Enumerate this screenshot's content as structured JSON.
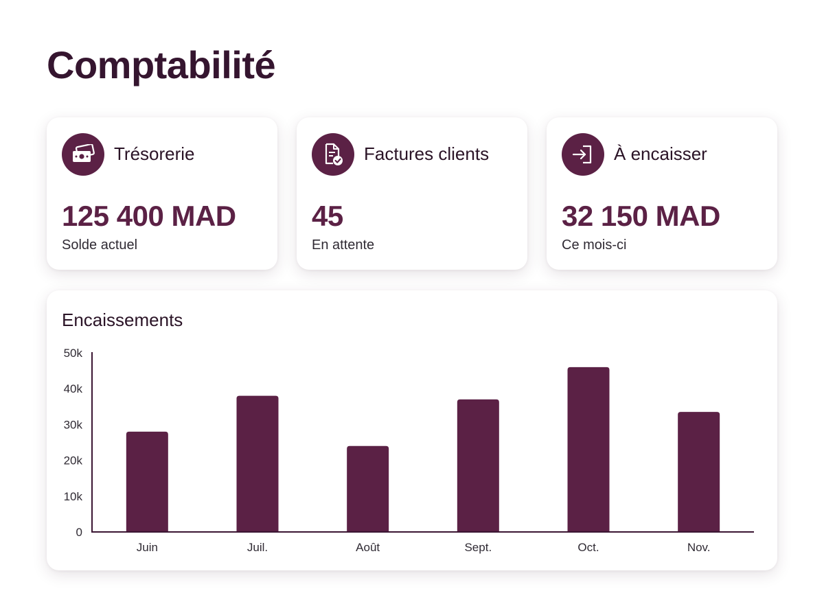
{
  "page": {
    "title": "Comptabilité"
  },
  "cards": [
    {
      "label": "Trésorerie",
      "value": "125 400 MAD",
      "sub": "Solde actuel",
      "icon": "banknote-icon"
    },
    {
      "label": "Factures clients",
      "value": "45",
      "sub": "En attente",
      "icon": "invoice-check-icon"
    },
    {
      "label": "À encaisser",
      "value": "32 150 MAD",
      "sub": "Ce mois-ci",
      "icon": "sign-in-icon"
    }
  ],
  "colors": {
    "accent": "#5b2145",
    "title": "#35152f"
  },
  "chart_data": {
    "type": "bar",
    "title": "Encaissements",
    "categories": [
      "Juin",
      "Juil.",
      "Août",
      "Sept.",
      "Oct.",
      "Nov."
    ],
    "values": [
      28000,
      38000,
      24000,
      37000,
      46000,
      33500
    ],
    "ylim": [
      0,
      50000
    ],
    "yticks": [
      0,
      10000,
      20000,
      30000,
      40000,
      50000
    ],
    "ytick_labels": [
      "0",
      "10k",
      "20k",
      "30k",
      "40k",
      "50k"
    ],
    "grid": false,
    "color": "#5b2145"
  }
}
